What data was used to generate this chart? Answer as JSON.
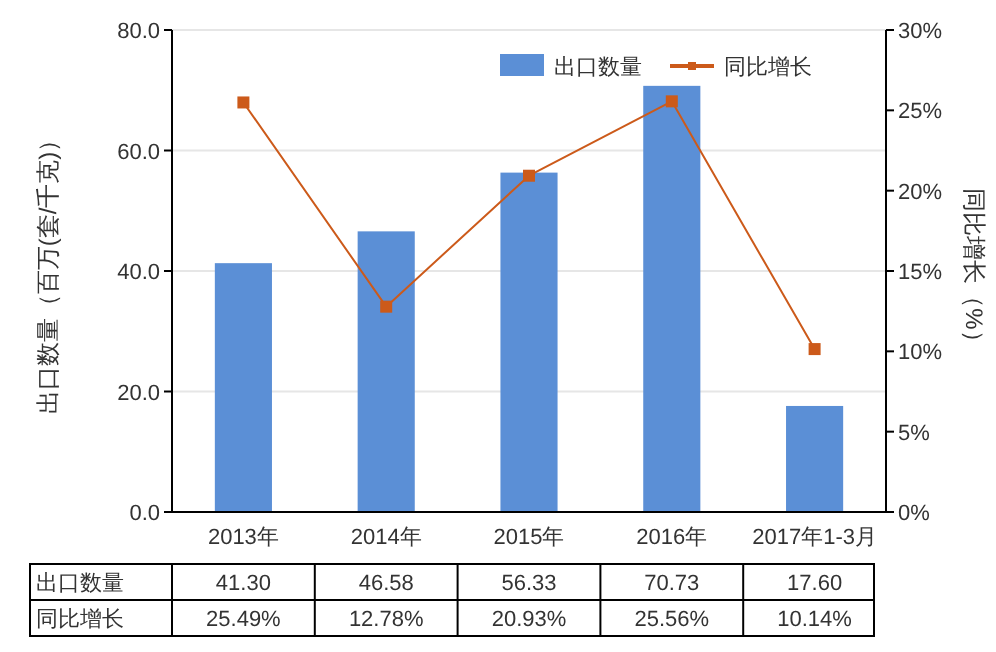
{
  "chart_data": {
    "type": "bar",
    "ylabel": "出口数量（百万(套/千克)）",
    "y2label": "同比增长（%）",
    "categories": [
      "2013年",
      "2014年",
      "2015年",
      "2016年",
      "2017年1-3月"
    ],
    "series": [
      {
        "name": "出口数量",
        "color": "#5b8fd6",
        "values": [
          41.3,
          46.58,
          56.33,
          70.73,
          17.6
        ],
        "value_labels": [
          "41.30",
          "46.58",
          "56.33",
          "70.73",
          "17.60"
        ]
      },
      {
        "name": "同比增长",
        "type": "line",
        "axis": "y2",
        "color": "#cc5a1a",
        "marker": "square",
        "values": [
          25.49,
          12.78,
          20.93,
          25.56,
          10.14
        ],
        "value_labels": [
          "25.49%",
          "12.78%",
          "20.93%",
          "25.56%",
          "10.14%"
        ]
      }
    ],
    "ylim": [
      0,
      80
    ],
    "yticks": [
      {
        "value": 0,
        "label": "0.0"
      },
      {
        "value": 20,
        "label": "20.0"
      },
      {
        "value": 40,
        "label": "40.0"
      },
      {
        "value": 60,
        "label": "60.0"
      },
      {
        "value": 80,
        "label": "80.0"
      }
    ],
    "y2lim": [
      0,
      30
    ],
    "y2ticks": [
      {
        "value": 0,
        "label": "0%"
      },
      {
        "value": 5,
        "label": "5%"
      },
      {
        "value": 10,
        "label": "10%"
      },
      {
        "value": 15,
        "label": "15%"
      },
      {
        "value": 20,
        "label": "20%"
      },
      {
        "value": 25,
        "label": "25%"
      },
      {
        "value": 30,
        "label": "30%"
      }
    ],
    "grid": "y",
    "legend": "top right"
  }
}
